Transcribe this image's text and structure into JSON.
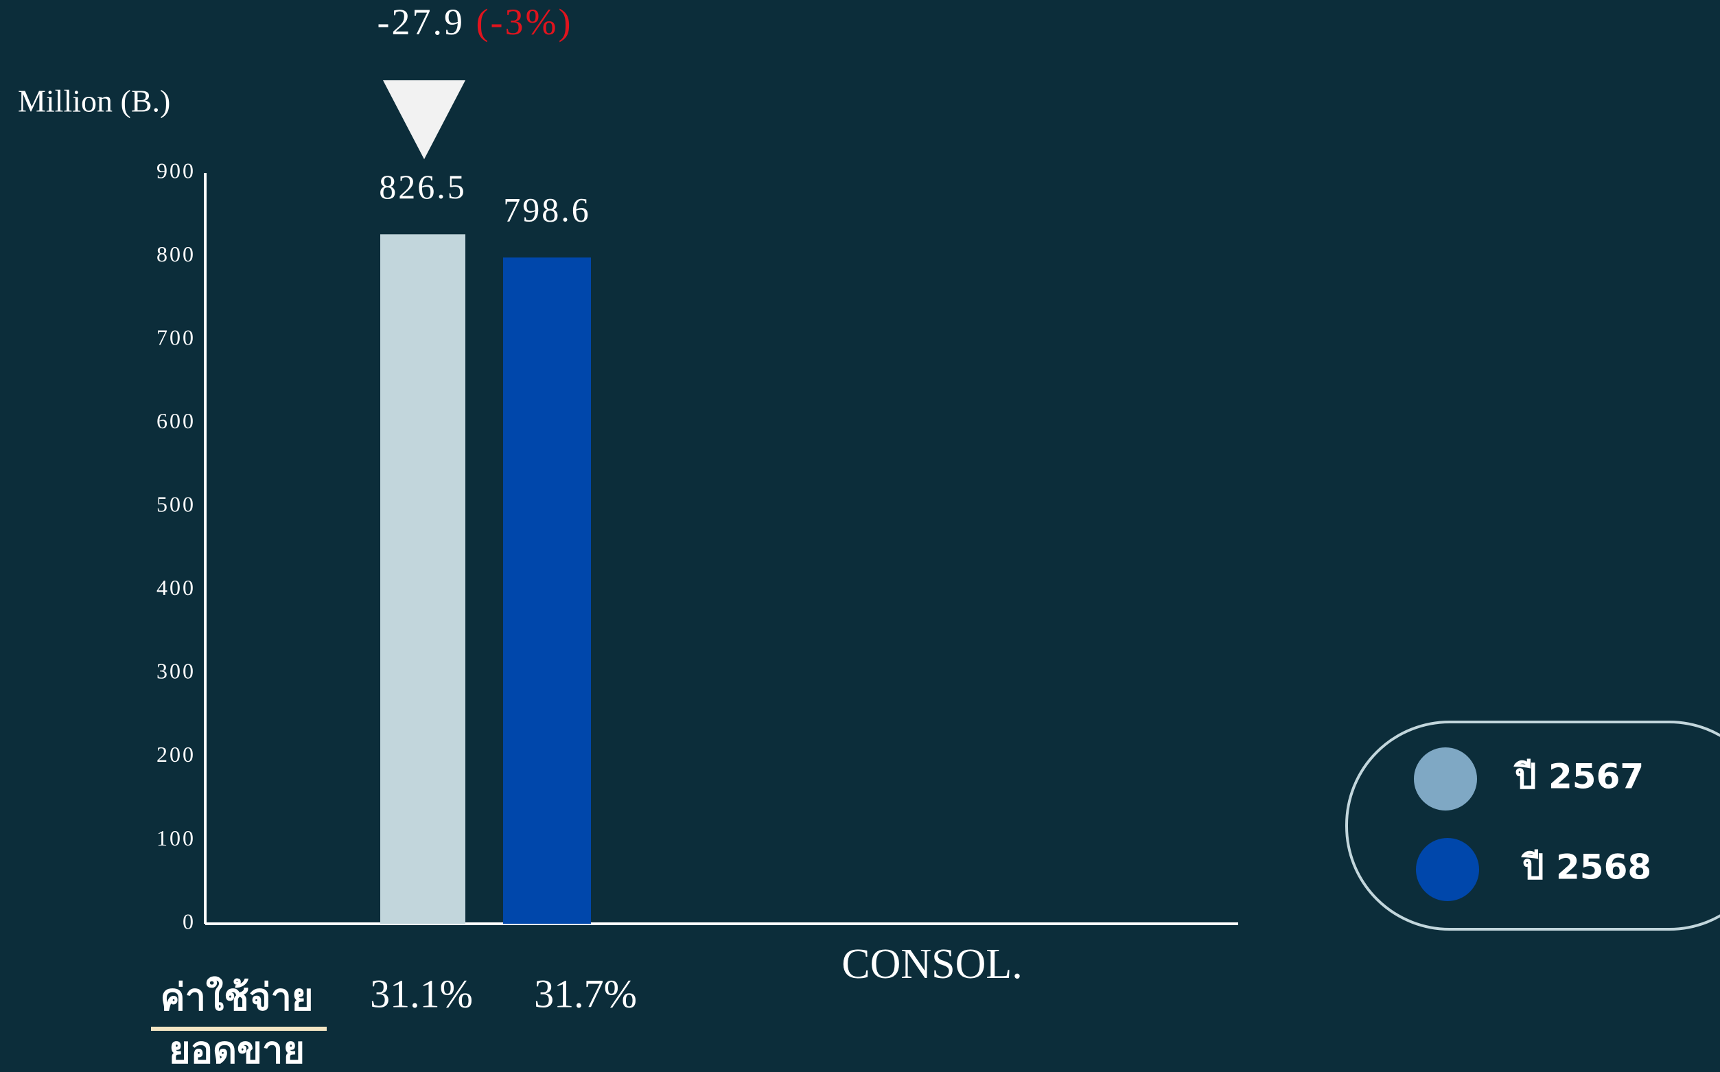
{
  "chart_data": {
    "type": "bar",
    "y_axis_label": "Million (B.)",
    "categories": [
      "CONSOL."
    ],
    "series": [
      {
        "name": "ปี 2567",
        "color": "#c2d6dc",
        "legend_color": "#7fa8c4",
        "values": [
          826.5
        ]
      },
      {
        "name": "ปี 2568",
        "color": "#0047ab",
        "legend_color": "#0047ab",
        "values": [
          798.6
        ]
      }
    ],
    "ylim": [
      0,
      900
    ],
    "yticks": [
      0,
      100,
      200,
      300,
      400,
      500,
      600,
      700,
      800,
      900
    ],
    "change": -27.9,
    "change_pct": -3,
    "change_pct_label": "(-3%)",
    "ratio": {
      "title_lines": [
        "ค่าใช้จ่าย",
        "ยอดขาย"
      ],
      "values": [
        31.1,
        31.7
      ],
      "value_labels": [
        "31.1%",
        "31.7%"
      ]
    }
  }
}
